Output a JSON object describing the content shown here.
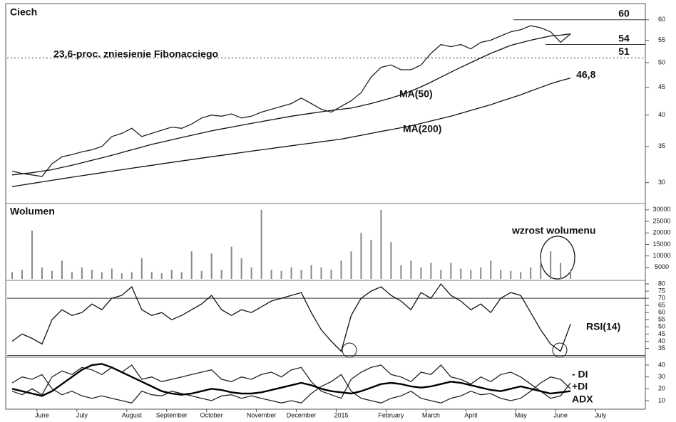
{
  "chart_data": [
    {
      "type": "line",
      "title": "Ciech",
      "annotation": "23,6-proc. zniesienie Fibonacciego",
      "log_scale": true,
      "categories": [
        null,
        null,
        null,
        "June",
        null,
        null,
        null,
        "July",
        null,
        null,
        null,
        null,
        "August",
        null,
        null,
        null,
        "September",
        null,
        null,
        null,
        "October",
        null,
        null,
        null,
        null,
        "November",
        null,
        null,
        null,
        "December",
        null,
        null,
        null,
        "2015",
        null,
        null,
        null,
        null,
        "February",
        null,
        null,
        null,
        "March",
        null,
        null,
        null,
        "April",
        null,
        null,
        null,
        null,
        "May",
        null,
        null,
        null,
        "June",
        null,
        null,
        null,
        "July",
        null,
        null,
        null,
        null
      ],
      "ylim": [
        27.7,
        63.7
      ],
      "yticks": [
        30,
        35,
        40,
        45,
        50,
        55,
        60
      ],
      "levels": [
        60,
        54,
        51
      ],
      "series": [
        {
          "color": "#222222",
          "values": [
            31.5,
            31.2,
            31,
            30.8,
            32.5,
            33.5,
            33.8,
            34.2,
            34.5,
            35,
            36.5,
            37,
            37.8,
            36.5,
            37,
            37.5,
            38,
            37.8,
            38.5,
            39.5,
            40,
            39.8,
            40.2,
            39.5,
            39.8,
            40.5,
            41,
            41.5,
            42,
            43,
            42,
            41,
            40.5,
            41.5,
            42.5,
            44,
            47,
            49,
            49.5,
            48.5,
            48.5,
            49.5,
            52,
            54,
            53.5,
            54,
            53,
            54.5,
            55,
            56,
            57,
            57.5,
            58.5,
            58,
            57,
            54.5,
            56.5,
            null,
            null,
            null,
            null,
            null,
            null,
            null
          ]
        },
        {
          "name": "MA(50)",
          "color": "#111111",
          "values": [
            31,
            31.15,
            31.3,
            31.5,
            31.7,
            32,
            32.3,
            32.65,
            33,
            33.35,
            33.7,
            34.1,
            34.5,
            34.9,
            35.3,
            35.65,
            36,
            36.35,
            36.7,
            37.05,
            37.4,
            37.7,
            38,
            38.3,
            38.6,
            38.9,
            39.2,
            39.5,
            39.8,
            40.05,
            40.3,
            40.55,
            40.8,
            41,
            41.2,
            41.6,
            42,
            42.5,
            43,
            43.6,
            44.3,
            45.1,
            46,
            47,
            48,
            49,
            50,
            51,
            52,
            52.9,
            53.8,
            54.4,
            55,
            55.5,
            56,
            56.2,
            56.5,
            null,
            null,
            null,
            null,
            null,
            null,
            null
          ]
        },
        {
          "name": "MA(200)",
          "color": "#111111",
          "values": [
            29.5,
            29.7,
            29.9,
            30.1,
            30.3,
            30.5,
            30.7,
            30.9,
            31.1,
            31.3,
            31.5,
            31.7,
            31.9,
            32.1,
            32.3,
            32.5,
            32.7,
            32.9,
            33.1,
            33.3,
            33.5,
            33.7,
            33.9,
            34.1,
            34.3,
            34.5,
            34.7,
            34.9,
            35.1,
            35.3,
            35.5,
            35.7,
            35.9,
            36.1,
            36.4,
            36.7,
            37,
            37.3,
            37.6,
            37.9,
            38.2,
            38.6,
            39,
            39.4,
            39.8,
            40.3,
            40.8,
            41.3,
            41.8,
            42.4,
            43,
            43.6,
            44.3,
            45,
            45.7,
            46.3,
            46.8,
            null,
            null,
            null,
            null,
            null,
            null,
            null
          ],
          "value_labels": [
            null,
            null,
            null,
            null,
            null,
            null,
            null,
            null,
            null,
            null,
            null,
            null,
            null,
            null,
            null,
            null,
            null,
            null,
            null,
            null,
            null,
            null,
            null,
            null,
            null,
            null,
            null,
            null,
            null,
            null,
            null,
            null,
            null,
            null,
            null,
            null,
            null,
            null,
            null,
            null,
            null,
            null,
            null,
            null,
            null,
            null,
            null,
            null,
            null,
            null,
            null,
            null,
            null,
            null,
            null,
            null,
            "46,8",
            null,
            null,
            null,
            null,
            null,
            null,
            null
          ]
        }
      ]
    },
    {
      "type": "bar",
      "title": "Wolumen",
      "annotation": "wzrost wolumenu",
      "ylim": [
        0,
        31500
      ],
      "yticks": [
        5000,
        10000,
        15000,
        20000,
        25000,
        30000
      ],
      "series": [
        {
          "color": "#888888",
          "values": [
            3000,
            4000,
            21000,
            5000,
            3500,
            8000,
            3000,
            5000,
            4000,
            3000,
            4500,
            2500,
            3000,
            9000,
            3000,
            2500,
            4000,
            3000,
            12000,
            3500,
            11000,
            4000,
            14000,
            9000,
            5000,
            30000,
            4000,
            3500,
            5000,
            4000,
            6000,
            5000,
            4000,
            8000,
            12000,
            20000,
            17000,
            30000,
            16000,
            6000,
            8000,
            5000,
            7000,
            4000,
            7000,
            4500,
            4000,
            5000,
            8000,
            4000,
            3500,
            3000,
            5000,
            9000,
            12000,
            7000,
            4000,
            null,
            null,
            null,
            null,
            null,
            null,
            null
          ]
        }
      ]
    },
    {
      "type": "line",
      "ylim": [
        29.8,
        80.5
      ],
      "yticks": [
        35,
        40,
        45,
        50,
        55,
        60,
        65,
        70,
        75,
        80
      ],
      "levels": [
        70,
        30
      ],
      "series": [
        {
          "name": "RSI(14)",
          "color": "#111111",
          "values": [
            40,
            45,
            42,
            38,
            55,
            62,
            58,
            60,
            66,
            62,
            70,
            72,
            78,
            62,
            58,
            60,
            55,
            58,
            62,
            66,
            72,
            62,
            58,
            62,
            60,
            64,
            68,
            70,
            72,
            74,
            60,
            48,
            40,
            33,
            58,
            70,
            75,
            78,
            72,
            68,
            62,
            74,
            70,
            80,
            72,
            68,
            62,
            66,
            60,
            70,
            74,
            72,
            60,
            48,
            38,
            33,
            52,
            null,
            null,
            null,
            null,
            null,
            null,
            null
          ]
        }
      ]
    },
    {
      "type": "line",
      "ylim": [
        2.8,
        44.8
      ],
      "yticks": [
        10,
        20,
        30,
        40
      ],
      "series": [
        {
          "name": "- DI",
          "color": "#222222",
          "values": [
            25,
            30,
            28,
            32,
            20,
            15,
            18,
            14,
            12,
            14,
            12,
            10,
            8,
            18,
            15,
            14,
            18,
            16,
            14,
            12,
            10,
            14,
            15,
            12,
            14,
            12,
            10,
            8,
            10,
            8,
            16,
            22,
            26,
            32,
            18,
            12,
            10,
            8,
            12,
            14,
            18,
            12,
            10,
            8,
            12,
            14,
            18,
            15,
            16,
            12,
            10,
            12,
            18,
            25,
            30,
            28,
            20,
            null,
            null,
            null,
            null,
            null,
            null,
            null
          ]
        },
        {
          "name": "+DI",
          "color": "#222222",
          "values": [
            18,
            15,
            20,
            15,
            30,
            35,
            32,
            38,
            36,
            32,
            38,
            34,
            40,
            28,
            30,
            26,
            28,
            30,
            32,
            34,
            36,
            28,
            26,
            30,
            28,
            32,
            34,
            30,
            36,
            38,
            26,
            18,
            15,
            12,
            28,
            34,
            38,
            40,
            32,
            30,
            26,
            34,
            32,
            40,
            30,
            28,
            24,
            30,
            26,
            32,
            34,
            30,
            24,
            18,
            12,
            14,
            25,
            null,
            null,
            null,
            null,
            null,
            null,
            null
          ]
        },
        {
          "name": "ADX",
          "color": "#000000",
          "values": [
            20,
            18,
            16,
            14,
            18,
            24,
            30,
            36,
            40,
            41,
            38,
            34,
            30,
            26,
            22,
            18,
            16,
            15,
            16,
            18,
            20,
            19,
            17,
            16,
            16,
            17,
            19,
            21,
            23,
            25,
            23,
            20,
            18,
            17,
            16,
            18,
            21,
            24,
            25,
            24,
            22,
            21,
            22,
            24,
            26,
            25,
            23,
            21,
            19,
            18,
            20,
            22,
            20,
            18,
            16,
            17,
            18,
            null,
            null,
            null,
            null,
            null,
            null,
            null
          ]
        }
      ]
    }
  ]
}
